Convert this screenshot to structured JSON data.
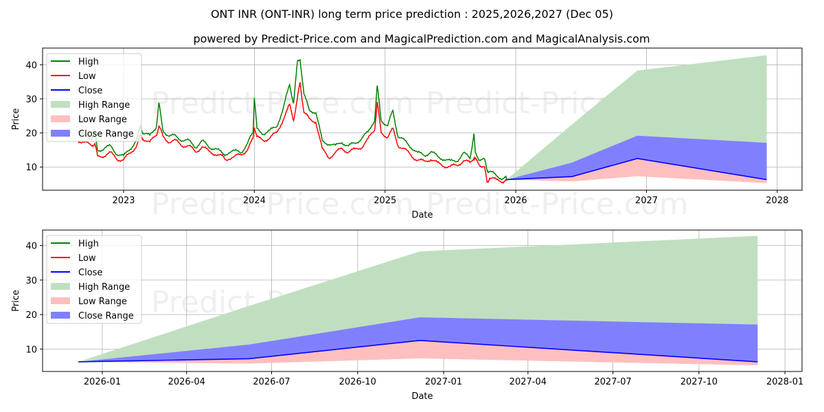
{
  "title": "ONT INR (ONT-INR) long term price prediction : 2025,2026,2027 (Dec 05)",
  "subtitle": "powered by Predict-Price.com and MagicalPrediction.com and MagicalAnalysis.com",
  "watermark": "Predict-Price.com",
  "colors": {
    "high": "#008000",
    "low": "#ff0000",
    "close": "#0000ff",
    "high_range": "#c0dfc0",
    "low_range": "#ffbfbf",
    "close_range": "#8080ff",
    "grid": "#b0b0b0"
  },
  "legend": [
    "High",
    "Low",
    "Close",
    "High Range",
    "Low Range",
    "Close Range"
  ],
  "chart_data": [
    {
      "type": "line",
      "name": "long-term",
      "xlabel": "Date",
      "ylabel": "Price",
      "xlim": [
        2022.38,
        2028.19
      ],
      "ylim": [
        3.2,
        44.9
      ],
      "xticks": [
        [
          2023,
          "2023"
        ],
        [
          2024,
          "2024"
        ],
        [
          2025,
          "2025"
        ],
        [
          2026,
          "2026"
        ],
        [
          2027,
          "2027"
        ],
        [
          2028,
          "2028"
        ]
      ],
      "yticks": [
        10,
        20,
        30,
        40
      ],
      "legend_position": "top-left",
      "grid": true
    },
    {
      "type": "line",
      "name": "forecast-zoom",
      "xlabel": "Date",
      "ylabel": "Price",
      "xlim": [
        2025.825,
        2028.05
      ],
      "ylim": [
        3.5,
        44.5
      ],
      "xticks": [
        [
          2026.0,
          "2026-01"
        ],
        [
          2026.247,
          "2026-04"
        ],
        [
          2026.496,
          "2026-07"
        ],
        [
          2026.748,
          "2026-10"
        ],
        [
          2027.0,
          "2027-01"
        ],
        [
          2027.247,
          "2027-04"
        ],
        [
          2027.496,
          "2027-07"
        ],
        [
          2027.748,
          "2027-10"
        ],
        [
          2028.0,
          "2028-01"
        ]
      ],
      "yticks": [
        10,
        20,
        30,
        40
      ],
      "legend_position": "top-left",
      "grid": true
    }
  ],
  "history": {
    "x": [
      2022.65,
      2022.7,
      2022.75,
      2022.78,
      2022.8,
      2022.85,
      2022.9,
      2022.95,
      2023.0,
      2023.05,
      2023.1,
      2023.13,
      2023.15,
      2023.2,
      2023.25,
      2023.27,
      2023.3,
      2023.35,
      2023.4,
      2023.45,
      2023.5,
      2023.55,
      2023.6,
      2023.65,
      2023.7,
      2023.75,
      2023.78,
      2023.85,
      2023.9,
      2023.95,
      2023.99,
      2024.0,
      2024.02,
      2024.07,
      2024.12,
      2024.17,
      2024.22,
      2024.27,
      2024.3,
      2024.33,
      2024.35,
      2024.38,
      2024.42,
      2024.47,
      2024.52,
      2024.57,
      2024.62,
      2024.67,
      2024.72,
      2024.77,
      2024.82,
      2024.87,
      2024.92,
      2024.94,
      2024.97,
      2025.02,
      2025.06,
      2025.1,
      2025.15,
      2025.2,
      2025.25,
      2025.3,
      2025.35,
      2025.4,
      2025.45,
      2025.5,
      2025.55,
      2025.6,
      2025.65,
      2025.68,
      2025.69,
      2025.72,
      2025.76,
      2025.78,
      2025.8,
      2025.85,
      2025.9,
      2025.93
    ],
    "high": [
      21,
      19,
      18.5,
      20,
      15,
      15.5,
      16,
      14,
      13,
      15.5,
      18,
      22,
      20,
      19,
      22,
      28.5,
      21,
      19,
      19,
      18,
      17.5,
      16,
      17.5,
      16,
      15.5,
      14,
      14,
      14.5,
      14.5,
      17,
      20,
      30.5,
      21,
      20,
      20.5,
      22,
      27,
      34,
      29,
      40.5,
      42,
      31,
      27,
      26,
      17.5,
      17,
      16,
      17.5,
      16,
      17,
      18.5,
      20,
      24,
      33.5,
      24,
      22,
      26.5,
      19,
      17.5,
      16,
      14,
      13.5,
      14.5,
      13,
      12.5,
      11.5,
      12,
      14,
      12.5,
      20,
      14,
      12.5,
      12,
      9.5,
      8.5,
      7.5,
      6.8,
      6.5
    ],
    "low": [
      18,
      17,
      16.5,
      17,
      13,
      13.5,
      14,
      12.5,
      12,
      14,
      16.5,
      19,
      18.5,
      17,
      19.5,
      22,
      19,
      17.5,
      17.5,
      16.5,
      16,
      14.5,
      16,
      14.5,
      14,
      13,
      12.5,
      13,
      13.5,
      15.5,
      18,
      22,
      18.5,
      18,
      18.5,
      20,
      24,
      28,
      24,
      30,
      35,
      26,
      24,
      23.5,
      15,
      13,
      14,
      15.5,
      14.5,
      15,
      16,
      18,
      21,
      29,
      20,
      19,
      21,
      16.5,
      15,
      13.5,
      12,
      11.5,
      12.5,
      11,
      10.5,
      10,
      10.5,
      12,
      11,
      13,
      12,
      11,
      10,
      5.5,
      7,
      6,
      6,
      6
    ]
  },
  "forecast": {
    "dates": [
      "2025-12-05",
      "2026-06-05",
      "2026-12-05",
      "2027-12-01"
    ],
    "x": [
      2025.93,
      2026.43,
      2026.93,
      2027.92
    ],
    "close": [
      6.3,
      7.2,
      12.5,
      6.3
    ],
    "high": [
      6.3,
      22.5,
      38.3,
      42.8
    ],
    "low": [
      6.3,
      5.8,
      7.3,
      5.3
    ],
    "close_high": [
      6.3,
      11.3,
      19.2,
      17.1
    ]
  }
}
